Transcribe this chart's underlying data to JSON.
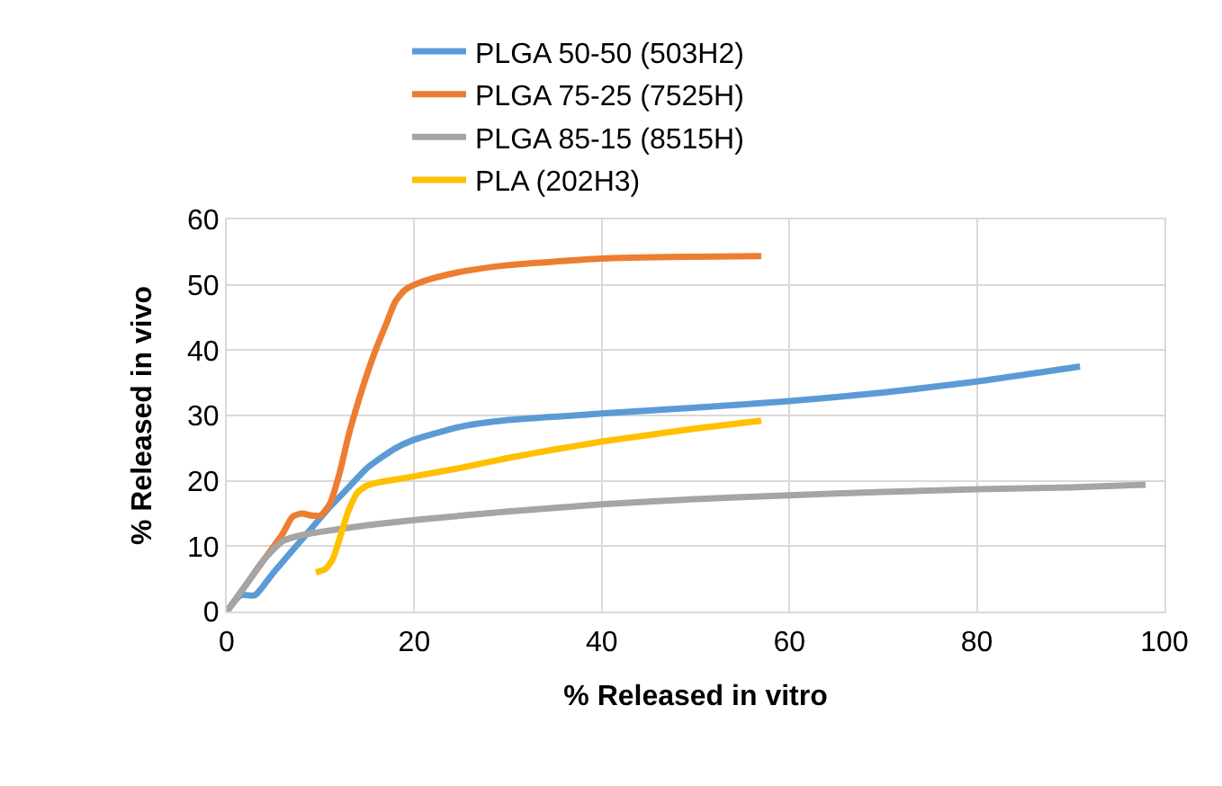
{
  "chart_data": {
    "type": "line",
    "xlabel": "% Released in vitro",
    "ylabel": "% Released in vivo",
    "xlim": [
      0,
      100
    ],
    "xticks": [
      0,
      20,
      40,
      60,
      80,
      100
    ],
    "ylim": [
      0,
      60
    ],
    "yticks": [
      0,
      10,
      20,
      30,
      40,
      50,
      60
    ],
    "grid": true,
    "legend": "top",
    "marker": "none",
    "line_style": "solid",
    "series": [
      {
        "name": "PLGA 50-50 (503H2)",
        "color": "#5b9bd5",
        "x": [
          0,
          1.5,
          3,
          5,
          8,
          11,
          13,
          15,
          18,
          20,
          25,
          30,
          40,
          50,
          60,
          70,
          80,
          91
        ],
        "values": [
          0,
          2.5,
          2.5,
          6,
          11,
          16,
          19,
          22,
          25,
          26.3,
          28.3,
          29.3,
          30.3,
          31.2,
          32.2,
          33.5,
          35.2,
          37.5
        ]
      },
      {
        "name": "PLGA 75-25 (7525H)",
        "color": "#ed7d31",
        "x": [
          0,
          2,
          4,
          6,
          7,
          8,
          9,
          10,
          11,
          12,
          13,
          14,
          15,
          16,
          17,
          18,
          19,
          20,
          22,
          25,
          30,
          40,
          50,
          57
        ],
        "values": [
          0,
          4,
          8,
          12,
          14.5,
          15,
          14.7,
          14.7,
          16.5,
          21,
          27,
          32,
          36.5,
          40.5,
          44,
          47.5,
          49.2,
          50,
          51,
          52,
          53,
          54,
          54.3,
          54.4
        ]
      },
      {
        "name": "PLGA 85-15 (8515H)",
        "color": "#a5a5a5",
        "x": [
          0,
          2,
          4,
          6,
          8,
          10,
          15,
          20,
          30,
          40,
          50,
          60,
          70,
          80,
          90,
          98
        ],
        "values": [
          0,
          4,
          8,
          10.8,
          11.7,
          12.2,
          13.2,
          14,
          15.3,
          16.4,
          17.2,
          17.8,
          18.3,
          18.7,
          19,
          19.4
        ]
      },
      {
        "name": "PLA (202H3)",
        "color": "#ffc000",
        "x": [
          9.5,
          10.5,
          11.3,
          12,
          13,
          14,
          15,
          16,
          18,
          20,
          25,
          30,
          35,
          40,
          45,
          50,
          57
        ],
        "values": [
          6,
          6.5,
          8,
          11,
          15.5,
          18.3,
          19.3,
          19.7,
          20.2,
          20.7,
          22,
          23.5,
          24.8,
          26,
          27,
          28,
          29.2
        ]
      }
    ]
  }
}
